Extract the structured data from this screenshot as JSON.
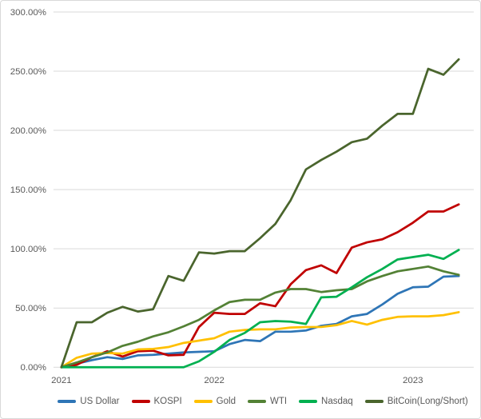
{
  "chart": {
    "background": "#FFFFFF",
    "border_color": "#D9D9D9",
    "gridline_color": "#D9D9D9",
    "text_color": "#595959"
  },
  "chart_data": {
    "type": "line",
    "title": "",
    "xlabel": "",
    "ylabel": "",
    "unit": "percent",
    "ylim": [
      0,
      300
    ],
    "grid": true,
    "legend_position": "bottom",
    "n_points": 27,
    "y_ticks": [
      {
        "label": "0.00%",
        "value": 0
      },
      {
        "label": "50.00%",
        "value": 50
      },
      {
        "label": "100.00%",
        "value": 100
      },
      {
        "label": "150.00%",
        "value": 150
      },
      {
        "label": "200.00%",
        "value": 200
      },
      {
        "label": "250.00%",
        "value": 250
      },
      {
        "label": "300.00%",
        "value": 300
      }
    ],
    "x_tick_labels": [
      {
        "label": "2021",
        "index": 0
      },
      {
        "label": "2022",
        "index": 10
      },
      {
        "label": "2023",
        "index": 23
      }
    ],
    "series": [
      {
        "name": "US Dollar",
        "color": "#2E75B6",
        "values": [
          0,
          3,
          6,
          8.5,
          7,
          10,
          10.5,
          11.5,
          12.5,
          13,
          13.5,
          19.5,
          23,
          22,
          30,
          30,
          31,
          35,
          36.5,
          43,
          45,
          53,
          62,
          67.5,
          68,
          76.5,
          77
        ]
      },
      {
        "name": "KOSPI",
        "color": "#C00000",
        "values": [
          0,
          2,
          8.5,
          13.5,
          9,
          13.5,
          14,
          10,
          10.5,
          34,
          46,
          45,
          45,
          54,
          51.5,
          70,
          82,
          86,
          79.5,
          101,
          105.5,
          108,
          114,
          122,
          131.5,
          131.5,
          137.5
        ]
      },
      {
        "name": "Gold",
        "color": "#FFC000",
        "values": [
          0,
          8,
          11.5,
          12,
          11.5,
          15,
          15.5,
          17,
          20.5,
          22.5,
          24.5,
          30,
          31.5,
          32,
          32,
          33.5,
          34,
          34,
          35.5,
          39,
          36,
          40,
          42.5,
          43,
          43,
          44,
          46.5
        ]
      },
      {
        "name": "WTI",
        "color": "#538135",
        "values": [
          0,
          4,
          8.5,
          12.5,
          18,
          21.5,
          26,
          29.5,
          34.5,
          40,
          48,
          55,
          57,
          57,
          63,
          66,
          66,
          63.5,
          65,
          66,
          72.5,
          77,
          81,
          83,
          85,
          81,
          78
        ]
      },
      {
        "name": "Nasdaq",
        "color": "#00B050",
        "values": [
          0,
          0,
          0,
          0,
          0,
          0,
          0,
          0,
          0,
          5,
          13,
          23,
          29,
          38,
          39,
          38.5,
          36.5,
          59,
          59.5,
          67.5,
          76,
          83,
          91,
          93,
          95,
          91.5,
          99
        ]
      },
      {
        "name": "BitCoin(Long/Short)",
        "color": "#4A652D",
        "values": [
          0,
          38,
          38,
          46,
          51,
          47,
          49,
          77,
          73,
          97,
          96,
          98,
          98,
          109,
          121,
          141,
          167,
          175,
          182,
          190,
          193,
          204,
          214,
          214,
          252,
          247,
          260
        ]
      }
    ]
  }
}
